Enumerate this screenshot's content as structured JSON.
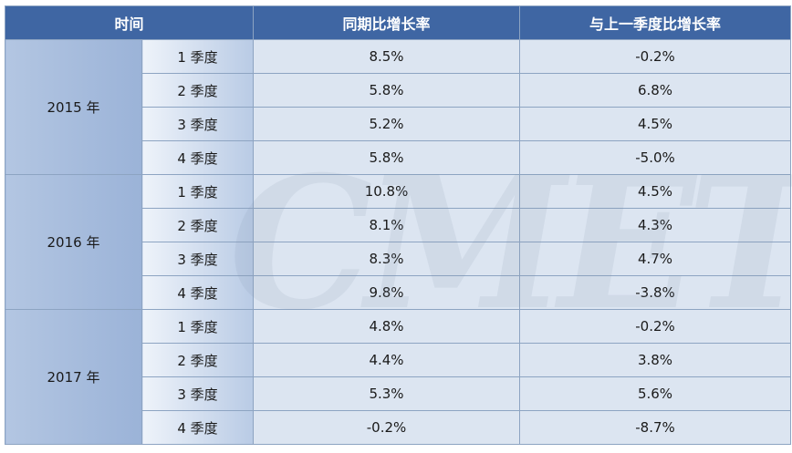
{
  "table": {
    "headers": {
      "time": "时间",
      "yoy": "同期比增长率",
      "qoq": "与上一季度比增长率"
    },
    "groups": [
      {
        "year": "2015 年",
        "rows": [
          {
            "quarter": "1 季度",
            "yoy": "8.5%",
            "qoq": "-0.2%"
          },
          {
            "quarter": "2 季度",
            "yoy": "5.8%",
            "qoq": "6.8%"
          },
          {
            "quarter": "3 季度",
            "yoy": "5.2%",
            "qoq": "4.5%"
          },
          {
            "quarter": "4 季度",
            "yoy": "5.8%",
            "qoq": "-5.0%"
          }
        ]
      },
      {
        "year": "2016 年",
        "rows": [
          {
            "quarter": "1 季度",
            "yoy": "10.8%",
            "qoq": "4.5%"
          },
          {
            "quarter": "2 季度",
            "yoy": "8.1%",
            "qoq": "4.3%"
          },
          {
            "quarter": "3 季度",
            "yoy": "8.3%",
            "qoq": "4.7%"
          },
          {
            "quarter": "4 季度",
            "yoy": "9.8%",
            "qoq": "-3.8%"
          }
        ]
      },
      {
        "year": "2017 年",
        "rows": [
          {
            "quarter": "1 季度",
            "yoy": "4.8%",
            "qoq": "-0.2%"
          },
          {
            "quarter": "2 季度",
            "yoy": "4.4%",
            "qoq": "3.8%"
          },
          {
            "quarter": "3 季度",
            "yoy": "5.3%",
            "qoq": "5.6%"
          },
          {
            "quarter": "4 季度",
            "yoy": "-0.2%",
            "qoq": "-8.7%"
          }
        ]
      }
    ]
  },
  "watermark": {
    "text": "CMET",
    "color": "#7d8fa8"
  }
}
